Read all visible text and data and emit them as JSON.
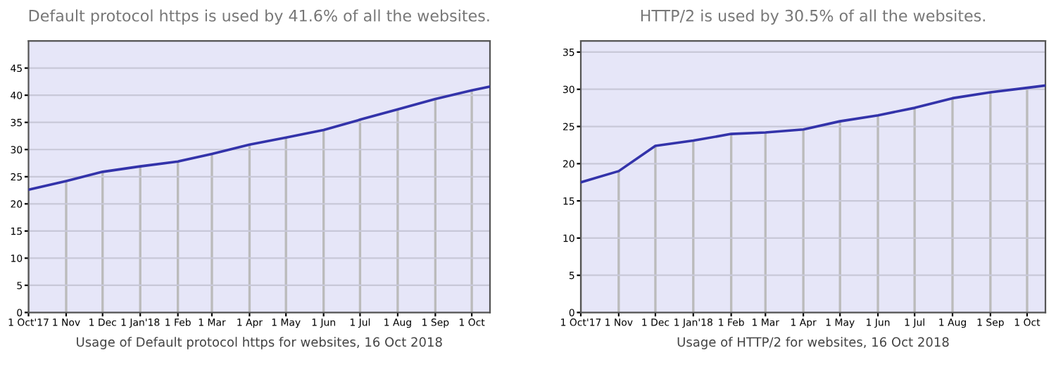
{
  "chart_data": [
    {
      "type": "line",
      "title": "Default protocol https is used by 41.6% of all the websites.",
      "x": [
        "2017-10-01",
        "2017-11-01",
        "2017-12-01",
        "2018-01-01",
        "2018-02-01",
        "2018-03-01",
        "2018-04-01",
        "2018-05-01",
        "2018-06-01",
        "2018-07-01",
        "2018-08-01",
        "2018-09-01",
        "2018-10-01",
        "2018-10-16"
      ],
      "series": [
        {
          "color": "#3333aa",
          "values": [
            22.6,
            24.2,
            25.9,
            26.9,
            27.8,
            29.2,
            30.9,
            32.2,
            33.6,
            35.5,
            37.4,
            39.3,
            40.9,
            41.6
          ]
        }
      ],
      "xlim": [
        "2017-10-01",
        "2018-10-16"
      ],
      "xticks": [
        {
          "value": "2017-10-01",
          "label": "1 Oct'17"
        },
        {
          "value": "2017-11-01",
          "label": "1 Nov"
        },
        {
          "value": "2017-12-01",
          "label": "1 Dec"
        },
        {
          "value": "2018-01-01",
          "label": "1 Jan'18"
        },
        {
          "value": "2018-02-01",
          "label": "1 Feb"
        },
        {
          "value": "2018-03-01",
          "label": "1 Mar"
        },
        {
          "value": "2018-04-01",
          "label": "1 Apr"
        },
        {
          "value": "2018-05-01",
          "label": "1 May"
        },
        {
          "value": "2018-06-01",
          "label": "1 Jun"
        },
        {
          "value": "2018-07-01",
          "label": "1 Jul"
        },
        {
          "value": "2018-08-01",
          "label": "1 Aug"
        },
        {
          "value": "2018-09-01",
          "label": "1 Sep"
        },
        {
          "value": "2018-10-01",
          "label": "1 Oct"
        }
      ],
      "ylim": [
        0,
        50
      ],
      "yticks": [
        0,
        5,
        10,
        15,
        20,
        25,
        30,
        35,
        40,
        45
      ],
      "grid": true,
      "marker": "none",
      "line_style": "solid",
      "annotations": [
        "Usage of Default protocol https for websites, 16 Oct 2018"
      ]
    },
    {
      "type": "line",
      "title": "HTTP/2 is used by 30.5% of all the websites.",
      "x": [
        "2017-10-01",
        "2017-11-01",
        "2017-12-01",
        "2018-01-01",
        "2018-02-01",
        "2018-03-01",
        "2018-04-01",
        "2018-05-01",
        "2018-06-01",
        "2018-07-01",
        "2018-08-01",
        "2018-09-01",
        "2018-10-01",
        "2018-10-16"
      ],
      "series": [
        {
          "color": "#3333aa",
          "values": [
            17.5,
            19.0,
            22.4,
            23.1,
            24.0,
            24.2,
            24.6,
            25.7,
            26.5,
            27.5,
            28.8,
            29.6,
            30.2,
            30.5
          ]
        }
      ],
      "xlim": [
        "2017-10-01",
        "2018-10-16"
      ],
      "xticks": [
        {
          "value": "2017-10-01",
          "label": "1 Oct'17"
        },
        {
          "value": "2017-11-01",
          "label": "1 Nov"
        },
        {
          "value": "2017-12-01",
          "label": "1 Dec"
        },
        {
          "value": "2018-01-01",
          "label": "1 Jan'18"
        },
        {
          "value": "2018-02-01",
          "label": "1 Feb"
        },
        {
          "value": "2018-03-01",
          "label": "1 Mar"
        },
        {
          "value": "2018-04-01",
          "label": "1 Apr"
        },
        {
          "value": "2018-05-01",
          "label": "1 May"
        },
        {
          "value": "2018-06-01",
          "label": "1 Jun"
        },
        {
          "value": "2018-07-01",
          "label": "1 Jul"
        },
        {
          "value": "2018-08-01",
          "label": "1 Aug"
        },
        {
          "value": "2018-09-01",
          "label": "1 Sep"
        },
        {
          "value": "2018-10-01",
          "label": "1 Oct"
        }
      ],
      "ylim": [
        0,
        36.5
      ],
      "yticks": [
        0,
        5,
        10,
        15,
        20,
        25,
        30,
        35
      ],
      "grid": true,
      "marker": "none",
      "line_style": "solid",
      "annotations": [
        "Usage of HTTP/2 for websites, 16 Oct 2018"
      ]
    }
  ]
}
